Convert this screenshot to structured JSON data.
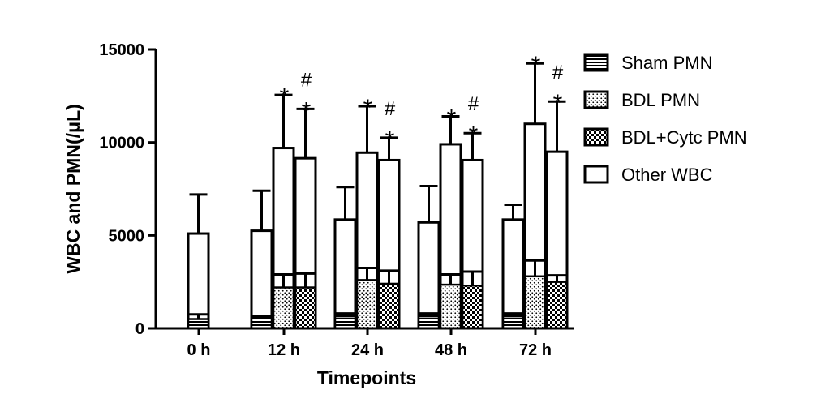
{
  "chart_data": {
    "type": "bar",
    "stacked": true,
    "xlabel": "Timepoints",
    "ylabel": "WBC and PMN(/μL)",
    "ylim": [
      0,
      15000
    ],
    "yticks": [
      0,
      5000,
      10000,
      15000
    ],
    "categories": [
      "0 h",
      "12 h",
      "24 h",
      "48 h",
      "72 h"
    ],
    "legend_position": "right",
    "series": [
      {
        "name": "Sham PMN",
        "pattern": "horizontal-lines"
      },
      {
        "name": "BDL PMN",
        "pattern": "dots"
      },
      {
        "name": "BDL+Cytc PMN",
        "pattern": "checker"
      },
      {
        "name": "Other WBC",
        "pattern": "empty"
      }
    ],
    "bars": [
      {
        "category": "0 h",
        "group": "Sham",
        "pmn_series": "Sham PMN",
        "pmn": 500,
        "pmn_err": 250,
        "total": 5100,
        "total_err": 2100,
        "sig": ""
      },
      {
        "category": "12 h",
        "group": "Sham",
        "pmn_series": "Sham PMN",
        "pmn": 550,
        "pmn_err": 100,
        "total": 5250,
        "total_err": 2150,
        "sig": ""
      },
      {
        "category": "12 h",
        "group": "BDL",
        "pmn_series": "BDL PMN",
        "pmn": 2200,
        "pmn_err": 700,
        "total": 9700,
        "total_err": 2850,
        "sig": "*"
      },
      {
        "category": "12 h",
        "group": "BDL+Cytc",
        "pmn_series": "BDL+Cytc PMN",
        "pmn": 2200,
        "pmn_err": 750,
        "total": 9150,
        "total_err": 2650,
        "sig": "#\n*"
      },
      {
        "category": "24 h",
        "group": "Sham",
        "pmn_series": "Sham PMN",
        "pmn": 650,
        "pmn_err": 150,
        "total": 5850,
        "total_err": 1750,
        "sig": ""
      },
      {
        "category": "24 h",
        "group": "BDL",
        "pmn_series": "BDL PMN",
        "pmn": 2600,
        "pmn_err": 650,
        "total": 9450,
        "total_err": 2500,
        "sig": "*"
      },
      {
        "category": "24 h",
        "group": "BDL+Cytc",
        "pmn_series": "BDL+Cytc PMN",
        "pmn": 2400,
        "pmn_err": 700,
        "total": 9050,
        "total_err": 1200,
        "sig": "#\n*"
      },
      {
        "category": "48 h",
        "group": "Sham",
        "pmn_series": "Sham PMN",
        "pmn": 650,
        "pmn_err": 150,
        "total": 5700,
        "total_err": 1950,
        "sig": ""
      },
      {
        "category": "48 h",
        "group": "BDL",
        "pmn_series": "BDL PMN",
        "pmn": 2350,
        "pmn_err": 550,
        "total": 9900,
        "total_err": 1500,
        "sig": "*"
      },
      {
        "category": "48 h",
        "group": "BDL+Cytc",
        "pmn_series": "BDL+Cytc PMN",
        "pmn": 2300,
        "pmn_err": 750,
        "total": 9050,
        "total_err": 1450,
        "sig": "#\n*"
      },
      {
        "category": "72 h",
        "group": "Sham",
        "pmn_series": "Sham PMN",
        "pmn": 650,
        "pmn_err": 150,
        "total": 5850,
        "total_err": 800,
        "sig": ""
      },
      {
        "category": "72 h",
        "group": "BDL",
        "pmn_series": "BDL PMN",
        "pmn": 2800,
        "pmn_err": 850,
        "total": 11000,
        "total_err": 3250,
        "sig": "*"
      },
      {
        "category": "72 h",
        "group": "BDL+Cytc",
        "pmn_series": "BDL+Cytc PMN",
        "pmn": 2500,
        "pmn_err": 350,
        "total": 9500,
        "total_err": 2700,
        "sig": "#\n*"
      }
    ]
  }
}
